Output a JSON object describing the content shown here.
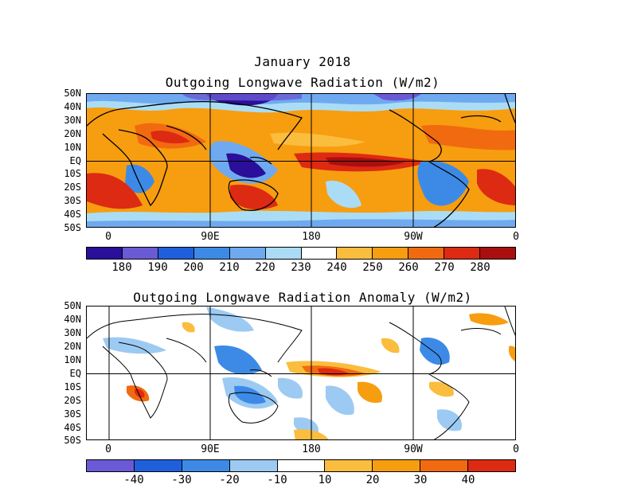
{
  "header": {
    "date_title": "January 2018",
    "olr_title": "Outgoing Longwave Radiation (W/m2)",
    "anom_title": "Outgoing Longwave Radiation Anomaly (W/m2)"
  },
  "lat_labels": [
    "50N",
    "40N",
    "30N",
    "20N",
    "10N",
    "EQ",
    "10S",
    "20S",
    "30S",
    "40S",
    "50S"
  ],
  "lon_labels": [
    "0",
    "90E",
    "180",
    "90W",
    "0"
  ],
  "olr_colorbar": {
    "labels": [
      "180",
      "190",
      "200",
      "210",
      "220",
      "230",
      "240",
      "250",
      "260",
      "270",
      "280"
    ],
    "colors": [
      "#2a0f9a",
      "#6a5ad6",
      "#1f5fdc",
      "#3d8ae6",
      "#6faaf0",
      "#aaddf5",
      "#ffffff",
      "#fbbd3e",
      "#f79d10",
      "#f26a10",
      "#dd2a12",
      "#a90f0f"
    ]
  },
  "anom_colorbar": {
    "labels": [
      "-40",
      "-30",
      "-20",
      "-10",
      "10",
      "20",
      "30",
      "40"
    ],
    "colors": [
      "#6a5ad6",
      "#1f5fdc",
      "#3d8ae6",
      "#9ccaf2",
      "#ffffff",
      "#fbbd3e",
      "#f79d10",
      "#f26a10",
      "#dd2a12"
    ]
  }
}
